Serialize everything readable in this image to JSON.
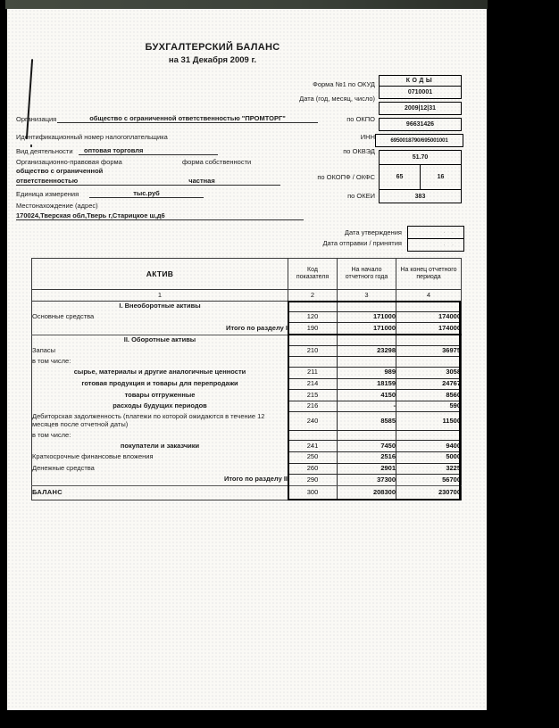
{
  "doc": {
    "title": "БУХГАЛТЕРСКИЙ БАЛАНС",
    "subtitle": "на 31 Декабря 2009 г.",
    "codes_header": "КОДЫ",
    "form_row": {
      "label": "Форма №1 по ОКУД",
      "value": "0710001"
    },
    "date_row": {
      "label": "Дата (год, месяц, число)",
      "value": "2009|12|31"
    },
    "org": {
      "label": "Организация",
      "value": "общество с ограниченной ответственностью \"ПРОМТОРГ\"",
      "code_label": "по ОКПО",
      "code_value": "96631426"
    },
    "inn": {
      "label": "Идентификационный номер налогоплательщика",
      "code_label": "ИНН",
      "code_value": "6950018790/695001001"
    },
    "activity": {
      "label": "Вид деятельности",
      "value": "оптовая торговля",
      "code_label": "по ОКВЭД",
      "code_value": "51.70"
    },
    "legal": {
      "form_label": "Организационно-правовая форма",
      "ownership_label": "форма собственности",
      "form_value_line1": "общество с ограниченной",
      "form_value_line2": "ответственностью",
      "ownership_value": "частная",
      "code_label": "по ОКОПФ / ОКФС",
      "okopf_value": "65",
      "okfs_value": "16"
    },
    "unit": {
      "label": "Единица измерения",
      "value": "тыс.руб",
      "code_label": "по ОКЕИ",
      "code_value": "383"
    },
    "location": {
      "label": "Местонахождение (адрес)",
      "value": "170024,Тверская обл,Тверь г,Старицкое ш,д6"
    },
    "dates": {
      "approval_label": "Дата утверждения",
      "sending_label": "Дата отправки / принятия",
      "dots": "· ·"
    }
  },
  "table": {
    "headers": {
      "asset": "АКТИВ",
      "code": "Код показателя",
      "start": "На начало отчетного года",
      "end": "На конец отчетного периода"
    },
    "col_numbers": [
      "1",
      "2",
      "3",
      "4"
    ],
    "rows": [
      {
        "type": "section",
        "label": "I. Внеоборотные активы",
        "code": "",
        "start": "",
        "end": ""
      },
      {
        "type": "row",
        "label": "Основные средства",
        "code": "120",
        "start": "171000",
        "end": "174000"
      },
      {
        "type": "total",
        "label": "Итого по разделу I",
        "code": "190",
        "start": "171000",
        "end": "174000"
      },
      {
        "type": "section",
        "label": "II. Оборотные активы",
        "code": "",
        "start": "",
        "end": ""
      },
      {
        "type": "row",
        "label": "Запасы",
        "code": "210",
        "start": "23298",
        "end": "36975"
      },
      {
        "type": "note",
        "label": "в том числе:",
        "code": "",
        "start": "",
        "end": ""
      },
      {
        "type": "sub",
        "label": "сырье, материалы и другие аналогичные ценности",
        "code": "211",
        "start": "989",
        "end": "3058"
      },
      {
        "type": "sub",
        "label": "готовая продукция и товары для перепродажи",
        "code": "214",
        "start": "18159",
        "end": "24767"
      },
      {
        "type": "sub",
        "label": "товары отгруженные",
        "code": "215",
        "start": "4150",
        "end": "8560"
      },
      {
        "type": "sub",
        "label": "расходы будущих периодов",
        "code": "216",
        "start": "-",
        "end": "590"
      },
      {
        "type": "row",
        "label": "Дебиторская задолженность (платежи по которой ожидаются в течение 12 месяцев после отчетной даты)",
        "code": "240",
        "start": "8585",
        "end": "11500"
      },
      {
        "type": "note",
        "label": "в том числе:",
        "code": "",
        "start": "",
        "end": ""
      },
      {
        "type": "sub",
        "label": "покупатели и заказчики",
        "code": "241",
        "start": "7450",
        "end": "9400"
      },
      {
        "type": "row",
        "label": "Краткосрочные финансовые вложения",
        "code": "250",
        "start": "2516",
        "end": "5000"
      },
      {
        "type": "row",
        "label": "Денежные средства",
        "code": "260",
        "start": "2901",
        "end": "3225"
      },
      {
        "type": "total",
        "label": "Итого по разделу II",
        "code": "290",
        "start": "37300",
        "end": "56700"
      },
      {
        "type": "balance",
        "label": "БАЛАНС",
        "code": "300",
        "start": "208300",
        "end": "230700"
      }
    ]
  }
}
